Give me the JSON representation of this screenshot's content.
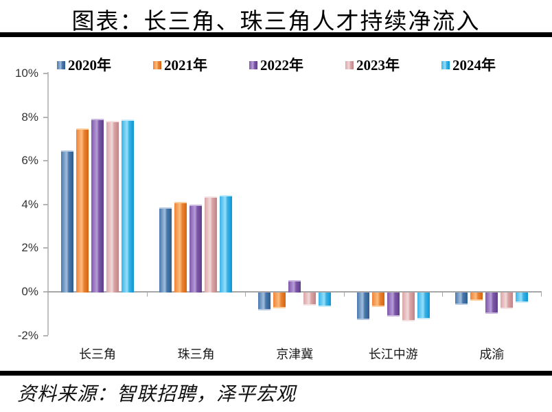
{
  "title": "图表：长三角、珠三角人才持续净流入",
  "source": "资料来源：智联招聘，泽平宏观",
  "chart_data": {
    "type": "bar",
    "title": "图表：长三角、珠三角人才持续净流入",
    "categories": [
      "长三角",
      "珠三角",
      "京津冀",
      "长江中游",
      "成渝"
    ],
    "series": [
      {
        "name": "2020年",
        "values": [
          6.45,
          3.85,
          -0.75,
          -1.2,
          -0.5
        ],
        "color": "#4a79ad",
        "color_light": "#a2bedc",
        "color_dark": "#2d5c8f",
        "color_cap": "#b7cce4"
      },
      {
        "name": "2021年",
        "values": [
          7.45,
          4.1,
          -0.65,
          -0.6,
          -0.3
        ],
        "color": "#ee8336",
        "color_light": "#fbbd80",
        "color_dark": "#d2650f",
        "color_cap": "#fccf9e"
      },
      {
        "name": "2022年",
        "values": [
          7.9,
          3.95,
          0.5,
          -1.05,
          -0.9
        ],
        "color": "#7e58ab",
        "color_light": "#b79dd6",
        "color_dark": "#5d3f86",
        "color_cap": "#cbb8e0"
      },
      {
        "name": "2023年",
        "values": [
          7.8,
          4.35,
          -0.55,
          -1.25,
          -0.7
        ],
        "color": "#daa5a7",
        "color_light": "#f2d9d9",
        "color_dark": "#c08385",
        "color_cap": "#f5e3e3"
      },
      {
        "name": "2024年",
        "values": [
          7.85,
          4.4,
          -0.6,
          -1.15,
          -0.4
        ],
        "color": "#38b4e9",
        "color_light": "#99def9",
        "color_dark": "#0f95d0",
        "color_cap": "#c8ecfb"
      }
    ],
    "y_tick_labels": [
      "10%",
      "8%",
      "6%",
      "4%",
      "2%",
      "0%",
      "-2%"
    ],
    "y_tick_values": [
      10,
      8,
      6,
      4,
      2,
      0,
      -2
    ],
    "ylim": [
      -2,
      10
    ],
    "xlabel": "",
    "ylabel": "",
    "grid": false,
    "legend_position": "top",
    "axis_color": "#a6a6a6"
  }
}
